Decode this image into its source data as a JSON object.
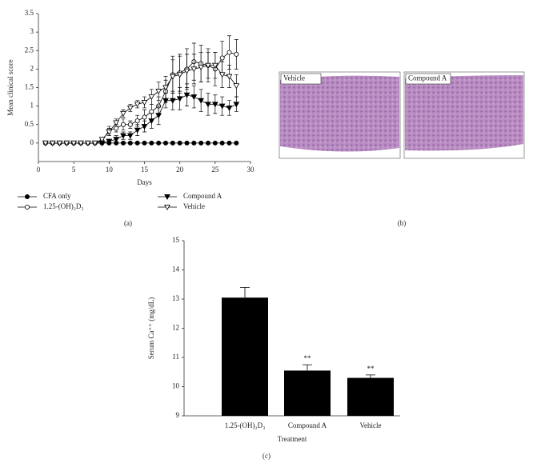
{
  "chart_data": [
    {
      "type": "line",
      "caption": "(a)",
      "x_label": "Days",
      "y_label": "Mean clinical score",
      "x": [
        1,
        2,
        3,
        4,
        5,
        6,
        7,
        8,
        9,
        10,
        11,
        12,
        13,
        14,
        15,
        16,
        17,
        18,
        19,
        20,
        21,
        22,
        23,
        24,
        25,
        26,
        27,
        28
      ],
      "xlim": [
        0,
        30
      ],
      "xticks": [
        0,
        5,
        10,
        15,
        20,
        25,
        30
      ],
      "ylim": [
        -0.5,
        3.5
      ],
      "yticks": [
        0,
        0.5,
        1,
        1.5,
        2,
        2.5,
        3,
        3.5
      ],
      "series": [
        {
          "name": "CFA only",
          "color": "#000000",
          "marker": "circle-filled",
          "values": [
            0,
            0,
            0,
            0,
            0,
            0,
            0,
            0,
            0,
            0,
            0,
            0,
            0,
            0,
            0,
            0,
            0,
            0,
            0,
            0,
            0,
            0,
            0,
            0,
            0,
            0,
            0,
            0
          ]
        },
        {
          "name": "1.25-(OH)₂D₃",
          "color": "#000000",
          "marker": "circle-open",
          "values": [
            0,
            0,
            0,
            0,
            0,
            0,
            0,
            0,
            0.05,
            0.35,
            0.4,
            0.5,
            0.5,
            0.6,
            0.7,
            0.85,
            1.0,
            1.4,
            1.85,
            1.9,
            2.0,
            2.2,
            2.15,
            2.1,
            2.0,
            2.3,
            2.45,
            2.4
          ],
          "errors": [
            0,
            0,
            0,
            0,
            0,
            0,
            0,
            0,
            0.05,
            0.1,
            0.1,
            0.15,
            0.1,
            0.15,
            0.2,
            0.2,
            0.25,
            0.3,
            0.5,
            0.5,
            0.55,
            0.5,
            0.5,
            0.45,
            0.45,
            0.45,
            0.45,
            0.4
          ]
        },
        {
          "name": "Compound A",
          "color": "#000000",
          "marker": "tri-filled",
          "values": [
            0,
            0,
            0,
            0,
            0,
            0,
            0,
            0,
            0,
            0.05,
            0.1,
            0.2,
            0.2,
            0.35,
            0.45,
            0.6,
            0.75,
            1.15,
            1.15,
            1.2,
            1.3,
            1.25,
            1.15,
            1.05,
            1.05,
            1.0,
            0.95,
            1.05
          ],
          "errors": [
            0,
            0,
            0,
            0,
            0,
            0,
            0,
            0,
            0,
            0.05,
            0.1,
            0.1,
            0.1,
            0.15,
            0.15,
            0.2,
            0.25,
            0.2,
            0.25,
            0.3,
            0.3,
            0.3,
            0.3,
            0.3,
            0.25,
            0.25,
            0.2,
            0.2
          ]
        },
        {
          "name": "Vehicle",
          "color": "#000000",
          "marker": "tri-open",
          "values": [
            0,
            0,
            0,
            0,
            0,
            0,
            0,
            0,
            0.1,
            0.3,
            0.55,
            0.8,
            0.95,
            1.05,
            1.1,
            1.25,
            1.4,
            1.5,
            1.8,
            1.85,
            1.95,
            2.0,
            2.05,
            2.1,
            2.1,
            1.85,
            1.8,
            1.55
          ],
          "errors": [
            0,
            0,
            0,
            0,
            0,
            0,
            0,
            0,
            0.05,
            0.1,
            0.1,
            0.1,
            0.1,
            0.1,
            0.15,
            0.2,
            0.25,
            0.3,
            0.45,
            0.5,
            0.45,
            0.4,
            0.4,
            0.35,
            0.35,
            0.35,
            0.3,
            0.3
          ]
        }
      ]
    },
    {
      "type": "bar",
      "caption": "(c)",
      "x_label": "Treatment",
      "y_label": "Serum Ca⁺⁺ (mg/dL)",
      "categories": [
        "1.25-(OH)₂D₃",
        "Compound A",
        "Vehicle"
      ],
      "values": [
        13.05,
        10.55,
        10.3
      ],
      "errors": [
        0.35,
        0.2,
        0.1
      ],
      "bar_labels": [
        null,
        "**",
        "**"
      ],
      "color": "#000000",
      "ylim": [
        9,
        15
      ],
      "yticks": [
        9,
        10,
        11,
        12,
        13,
        14,
        15
      ]
    }
  ],
  "panel_b": {
    "caption": "(b)",
    "labels": [
      "Vehicle",
      "Compound A"
    ]
  }
}
